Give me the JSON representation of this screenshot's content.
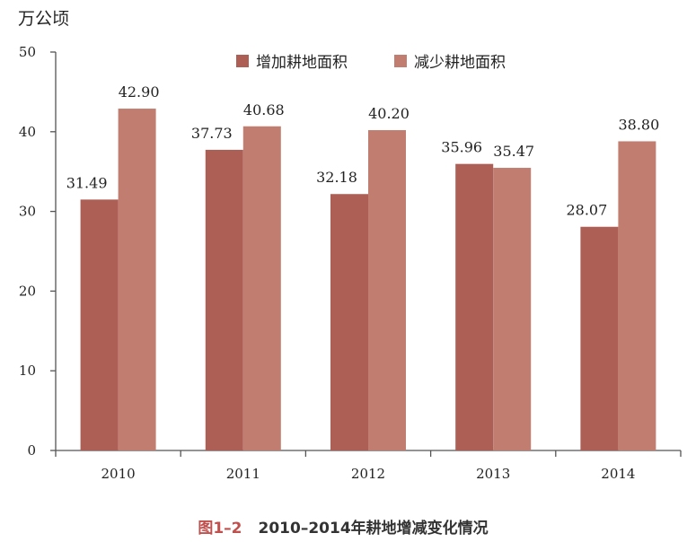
{
  "chart_data": {
    "type": "bar",
    "unit_label": "万公顷",
    "categories": [
      "2010",
      "2011",
      "2012",
      "2013",
      "2014"
    ],
    "series": [
      {
        "name": "增加耕地面积",
        "color": "#ad5f55",
        "values": [
          31.49,
          37.73,
          32.18,
          35.96,
          28.07
        ]
      },
      {
        "name": "减少耕地面积",
        "color": "#c17e70",
        "values": [
          42.9,
          40.68,
          40.2,
          35.47,
          38.8
        ]
      }
    ],
    "value_labels": [
      [
        "31.49",
        "37.73",
        "32.18",
        "35.96",
        "28.07"
      ],
      [
        "42.90",
        "40.68",
        "40.20",
        "35.47",
        "38.80"
      ]
    ],
    "ylim": [
      0,
      50
    ],
    "yticks": [
      0,
      10,
      20,
      30,
      40,
      50
    ],
    "grid": false,
    "legend_position": "top-center"
  },
  "caption": {
    "number": "图1–2",
    "text": "2010–2014年耕地增减变化情况",
    "number_color": "#c0504d",
    "text_color": "#333333"
  }
}
